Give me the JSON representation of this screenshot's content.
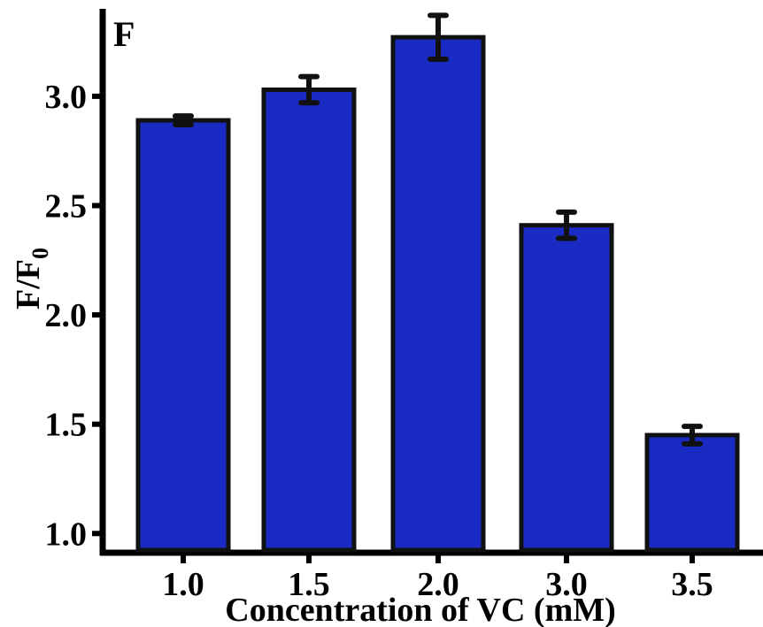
{
  "panel_label": "F",
  "chart_data": {
    "type": "bar",
    "categories": [
      "1.0",
      "1.5",
      "2.0",
      "3.0",
      "3.5"
    ],
    "values": [
      2.89,
      3.03,
      3.27,
      2.41,
      1.45
    ],
    "errors": [
      0.02,
      0.06,
      0.1,
      0.06,
      0.04
    ],
    "xlabel": "Concentration of VC (mM)",
    "ylabel": {
      "main": "F/F",
      "subscript": "0"
    },
    "ylim": [
      0.9,
      3.4
    ],
    "yticks": [
      1.0,
      1.5,
      2.0,
      2.5,
      3.0
    ],
    "ytick_labels": [
      "1.0",
      "1.5",
      "2.0",
      "2.5",
      "3.0"
    ],
    "grid": false,
    "bar_color": "#1a2bc4",
    "bar_edge_color": "#111111"
  }
}
